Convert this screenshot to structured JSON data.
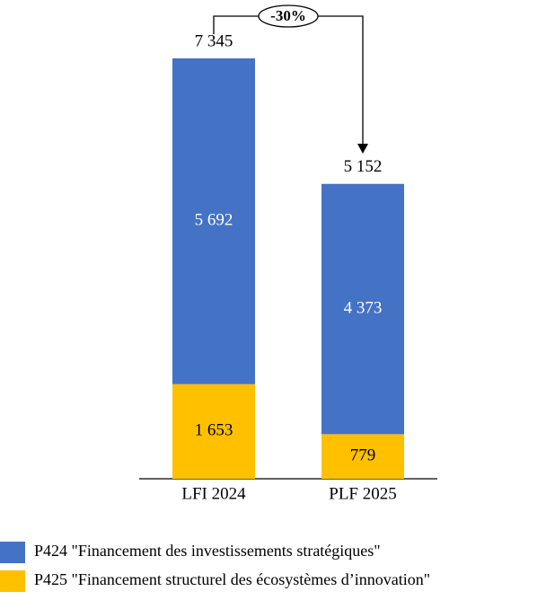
{
  "chart_data": {
    "type": "stacked-bar",
    "categories": [
      "LFI 2024",
      "PLF 2025"
    ],
    "series": [
      {
        "name": "P425 \"Financement structurel des écosystèmes d’innovation\"",
        "color": "#ffc000",
        "label_color": "#000000",
        "values": [
          1653,
          779
        ],
        "value_labels": [
          "1 653",
          "779"
        ]
      },
      {
        "name": "P424 \"Financement des investissements stratégiques\"",
        "color": "#4472c4",
        "label_color": "#ffffff",
        "values": [
          5692,
          4373
        ],
        "value_labels": [
          "5 692",
          "4 373"
        ]
      }
    ],
    "totals": [
      7345,
      5152
    ],
    "total_labels": [
      "7 345",
      "5 152"
    ],
    "annotation": "-30%"
  }
}
